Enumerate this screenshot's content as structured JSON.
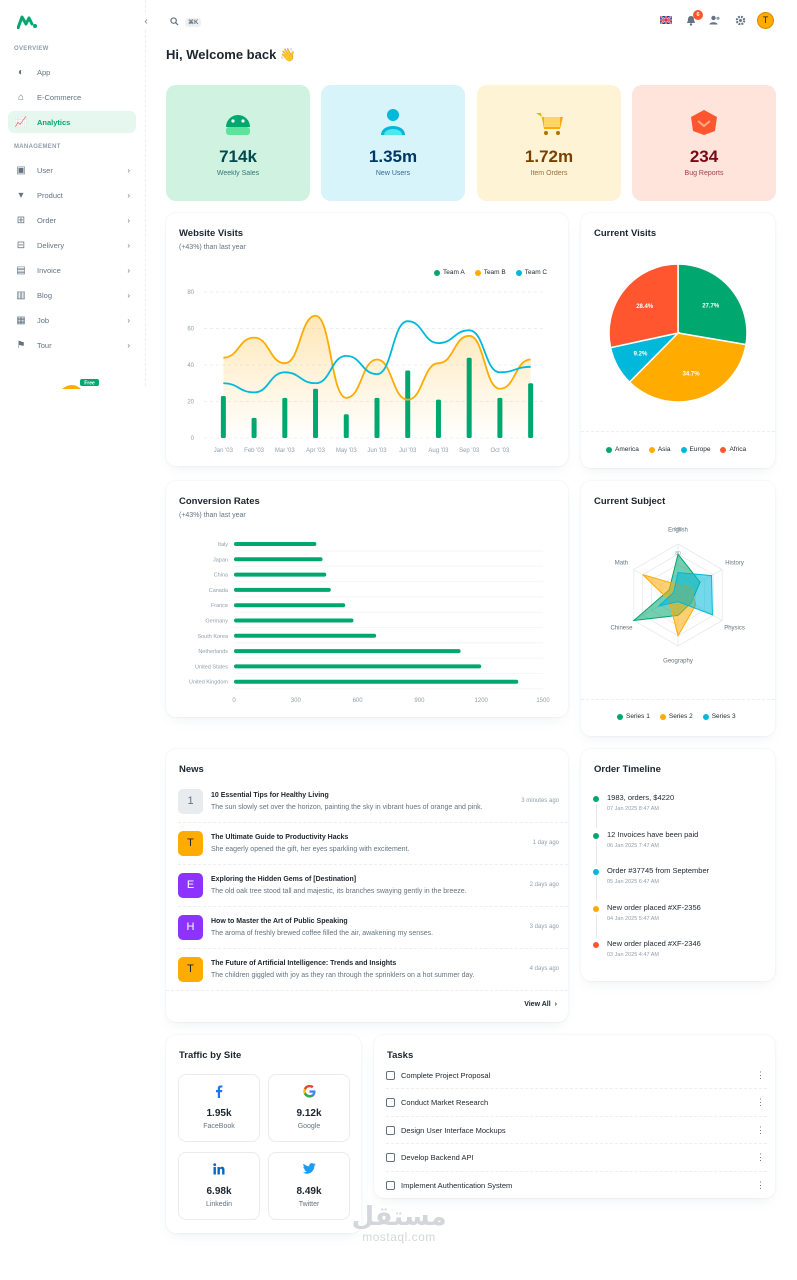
{
  "sidebar": {
    "sections": [
      "OVERVIEW",
      "MANAGEMENT"
    ],
    "overview": [
      {
        "label": "App",
        "icon": "app-icon"
      },
      {
        "label": "E-Commerce",
        "icon": "ecommerce-icon"
      },
      {
        "label": "Analytics",
        "icon": "analytics-icon",
        "active": true
      }
    ],
    "management": [
      {
        "label": "User",
        "icon": "user-icon"
      },
      {
        "label": "Product",
        "icon": "product-icon"
      },
      {
        "label": "Order",
        "icon": "order-icon"
      },
      {
        "label": "Delivery",
        "icon": "delivery-icon"
      },
      {
        "label": "Invoice",
        "icon": "invoice-icon"
      },
      {
        "label": "Blog",
        "icon": "blog-icon"
      },
      {
        "label": "Job",
        "icon": "job-icon"
      },
      {
        "label": "Tour",
        "icon": "tour-icon"
      }
    ],
    "free_badge": "Free"
  },
  "topbar": {
    "search_shortcut": "⌘K",
    "notifications_count": "6",
    "avatar_letter": "T"
  },
  "welcome": "Hi, Welcome back 👋",
  "stats": [
    {
      "value": "714k",
      "label": "Weekly Sales",
      "color": "#004b50",
      "bg": "#d0f2e1",
      "icon": "android-icon"
    },
    {
      "value": "1.35m",
      "label": "New Users",
      "color": "#003768",
      "bg": "#d6f4fa",
      "icon": "users-icon"
    },
    {
      "value": "1.72m",
      "label": "Item Orders",
      "color": "#7a4100",
      "bg": "#fff3d6",
      "icon": "cart-icon"
    },
    {
      "value": "234",
      "label": "Bug Reports",
      "color": "#7a0916",
      "bg": "#ffe4dc",
      "icon": "bug-icon"
    }
  ],
  "website_visits": {
    "title": "Website Visits",
    "subtitle": "(+43%) than last year",
    "legend": [
      "Team A",
      "Team B",
      "Team C"
    ]
  },
  "current_visits": {
    "title": "Current Visits",
    "legend": [
      "America",
      "Asia",
      "Europe",
      "Africa"
    ]
  },
  "conversion": {
    "title": "Conversion Rates",
    "subtitle": "(+43%) than last year"
  },
  "current_subject": {
    "title": "Current Subject",
    "legend": [
      "Series 1",
      "Series 2",
      "Series 3"
    ]
  },
  "chart_data": [
    {
      "type": "bar+line",
      "categories": [
        "Jan '03",
        "Feb '03",
        "Mar '03",
        "Apr '03",
        "May '03",
        "Jun '03",
        "Jul '03",
        "Aug '03",
        "Sep '03",
        "Oct '03",
        "Nov '03"
      ],
      "ylim": [
        0,
        80
      ],
      "yticks": [
        0,
        20,
        40,
        60,
        80
      ],
      "series": [
        {
          "name": "Team A",
          "type": "bar",
          "color": "#00a76f",
          "values": [
            23,
            11,
            22,
            27,
            13,
            22,
            37,
            21,
            44,
            22,
            30
          ]
        },
        {
          "name": "Team B",
          "type": "area",
          "color": "#ffab00",
          "values": [
            44,
            55,
            41,
            67,
            22,
            43,
            21,
            41,
            56,
            27,
            43
          ]
        },
        {
          "name": "Team C",
          "type": "line",
          "color": "#00b8d9",
          "values": [
            30,
            25,
            36,
            30,
            45,
            35,
            64,
            52,
            59,
            36,
            39
          ]
        }
      ]
    },
    {
      "type": "pie",
      "categories": [
        "America",
        "Asia",
        "Europe",
        "Africa"
      ],
      "values": [
        27.7,
        34.7,
        9.2,
        28.4
      ],
      "labels": [
        "27.7%",
        "34.7%",
        "9.2%",
        "28.4%"
      ],
      "colors": [
        "#00a76f",
        "#ffab00",
        "#00b8d9",
        "#ff5630"
      ]
    },
    {
      "type": "bar",
      "orientation": "horizontal",
      "categories": [
        "Italy",
        "Japan",
        "China",
        "Canada",
        "France",
        "Germany",
        "South Korea",
        "Netherlands",
        "United States",
        "United Kingdom"
      ],
      "values": [
        400,
        430,
        448,
        470,
        540,
        580,
        690,
        1100,
        1200,
        1380
      ],
      "xticks": [
        0,
        300,
        600,
        900,
        1200,
        1500
      ],
      "xlim": [
        0,
        1500
      ],
      "color": "#00a76f"
    },
    {
      "type": "radar",
      "axes": [
        "English",
        "History",
        "Physics",
        "Geography",
        "Chinese",
        "Math"
      ],
      "max": 100,
      "ticks": [
        "100",
        "80"
      ],
      "series": [
        {
          "name": "Series 1",
          "color": "#00a76f",
          "values": [
            80,
            50,
            30,
            40,
            100,
            20
          ]
        },
        {
          "name": "Series 2",
          "color": "#ffab00",
          "values": [
            20,
            30,
            40,
            80,
            20,
            80
          ]
        },
        {
          "name": "Series 3",
          "color": "#00b8d9",
          "values": [
            44,
            76,
            78,
            13,
            43,
            10
          ]
        }
      ]
    }
  ],
  "news": {
    "title": "News",
    "view_all": "View All",
    "items": [
      {
        "avatar": "1",
        "color": "#e9ecef",
        "fg": "#637381",
        "title": "10 Essential Tips for Healthy Living",
        "desc": "The sun slowly set over the horizon, painting the sky in vibrant hues of orange and pink.",
        "time": "3 minutes ago"
      },
      {
        "avatar": "T",
        "color": "#ffab00",
        "fg": "#1c252e",
        "title": "The Ultimate Guide to Productivity Hacks",
        "desc": "She eagerly opened the gift, her eyes sparkling with excitement.",
        "time": "1 day ago"
      },
      {
        "avatar": "E",
        "color": "#8e33ff",
        "fg": "#ffffff",
        "title": "Exploring the Hidden Gems of [Destination]",
        "desc": "The old oak tree stood tall and majestic, its branches swaying gently in the breeze.",
        "time": "2 days ago"
      },
      {
        "avatar": "H",
        "color": "#8e33ff",
        "fg": "#ffffff",
        "title": "How to Master the Art of Public Speaking",
        "desc": "The aroma of freshly brewed coffee filled the air, awakening my senses.",
        "time": "3 days ago"
      },
      {
        "avatar": "T",
        "color": "#ffab00",
        "fg": "#1c252e",
        "title": "The Future of Artificial Intelligence: Trends and Insights",
        "desc": "The children giggled with joy as they ran through the sprinklers on a hot summer day.",
        "time": "4 days ago"
      }
    ]
  },
  "timeline": {
    "title": "Order Timeline",
    "items": [
      {
        "title": "1983, orders, $4220",
        "time": "07 Jan 2025 8:47 AM",
        "color": "#00a76f"
      },
      {
        "title": "12 Invoices have been paid",
        "time": "06 Jan 2025 7:47 AM",
        "color": "#00a76f"
      },
      {
        "title": "Order #37745 from September",
        "time": "05 Jan 2025 6:47 AM",
        "color": "#00b8d9"
      },
      {
        "title": "New order placed #XF-2356",
        "time": "04 Jan 2025 5:47 AM",
        "color": "#ffab00"
      },
      {
        "title": "New order placed #XF-2346",
        "time": "03 Jan 2025 4:47 AM",
        "color": "#ff5630"
      }
    ]
  },
  "traffic": {
    "title": "Traffic by Site",
    "items": [
      {
        "value": "1.95k",
        "label": "FaceBook",
        "icon": "facebook-icon"
      },
      {
        "value": "9.12k",
        "label": "Google",
        "icon": "google-icon"
      },
      {
        "value": "6.98k",
        "label": "Linkedin",
        "icon": "linkedin-icon"
      },
      {
        "value": "8.49k",
        "label": "Twitter",
        "icon": "twitter-icon"
      }
    ]
  },
  "tasks": {
    "title": "Tasks",
    "items": [
      "Complete Project Proposal",
      "Conduct Market Research",
      "Design User Interface Mockups",
      "Develop Backend API",
      "Implement Authentication System"
    ]
  },
  "watermark": {
    "arabic": "مستقل",
    "latin": "mostaql.com"
  }
}
